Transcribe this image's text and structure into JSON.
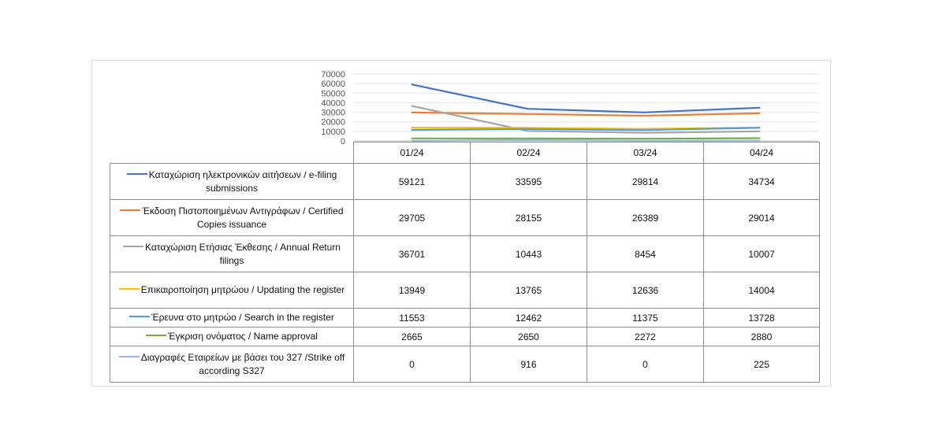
{
  "chart_data": {
    "type": "line",
    "categories": [
      "01/24",
      "02/24",
      "03/24",
      "04/24"
    ],
    "y_ticks": [
      "70000",
      "60000",
      "50000",
      "40000",
      "30000",
      "20000",
      "10000",
      "0"
    ],
    "ylim": [
      0,
      70000
    ],
    "grid": true,
    "legend": "table",
    "series": [
      {
        "name": "Καταχώριση ηλεκτρονικών αιτήσεων / e-filing submissions",
        "color": "#4472C4",
        "values": [
          59121,
          33595,
          29814,
          34734
        ],
        "labels": [
          "59121",
          "33595",
          "29814",
          "34734"
        ]
      },
      {
        "name": "Έκδοση Πιστοποιημένων Αντιγράφων / Certified Copies issuance",
        "color": "#ED7D31",
        "values": [
          29705,
          28155,
          26389,
          29014
        ],
        "labels": [
          "29705",
          "28155",
          "26389",
          "29014"
        ]
      },
      {
        "name": "Καταχώριση Ετήσιας Έκθεσης / Annual Return filings",
        "color": "#A5A5A5",
        "values": [
          36701,
          10443,
          8454,
          10007
        ],
        "labels": [
          "36701",
          "10443",
          "8454",
          "10007"
        ]
      },
      {
        "name": "Επικαιροποίηση μητρώου / Updating the register",
        "color": "#FFC000",
        "values": [
          13949,
          13765,
          12636,
          14004
        ],
        "labels": [
          "13949",
          "13765",
          "12636",
          "14004"
        ]
      },
      {
        "name": "Έρευνα στο μητρώο / Search in the register",
        "color": "#5B9BD5",
        "values": [
          11553,
          12462,
          11375,
          13728
        ],
        "labels": [
          "11553",
          "12462",
          "11375",
          "13728"
        ]
      },
      {
        "name": "Έγκριση ονόματος / Name approval",
        "color": "#70AD47",
        "values": [
          2665,
          2650,
          2272,
          2880
        ],
        "labels": [
          "2665",
          "2650",
          "2272",
          "2880"
        ]
      },
      {
        "name": "Διαγραφές Εταιρείων με βάσει του 327 /Strike off according S327",
        "color": "#9DB4E8",
        "values": [
          0,
          916,
          0,
          225
        ],
        "labels": [
          "0",
          "916",
          "0",
          "225"
        ]
      }
    ]
  }
}
